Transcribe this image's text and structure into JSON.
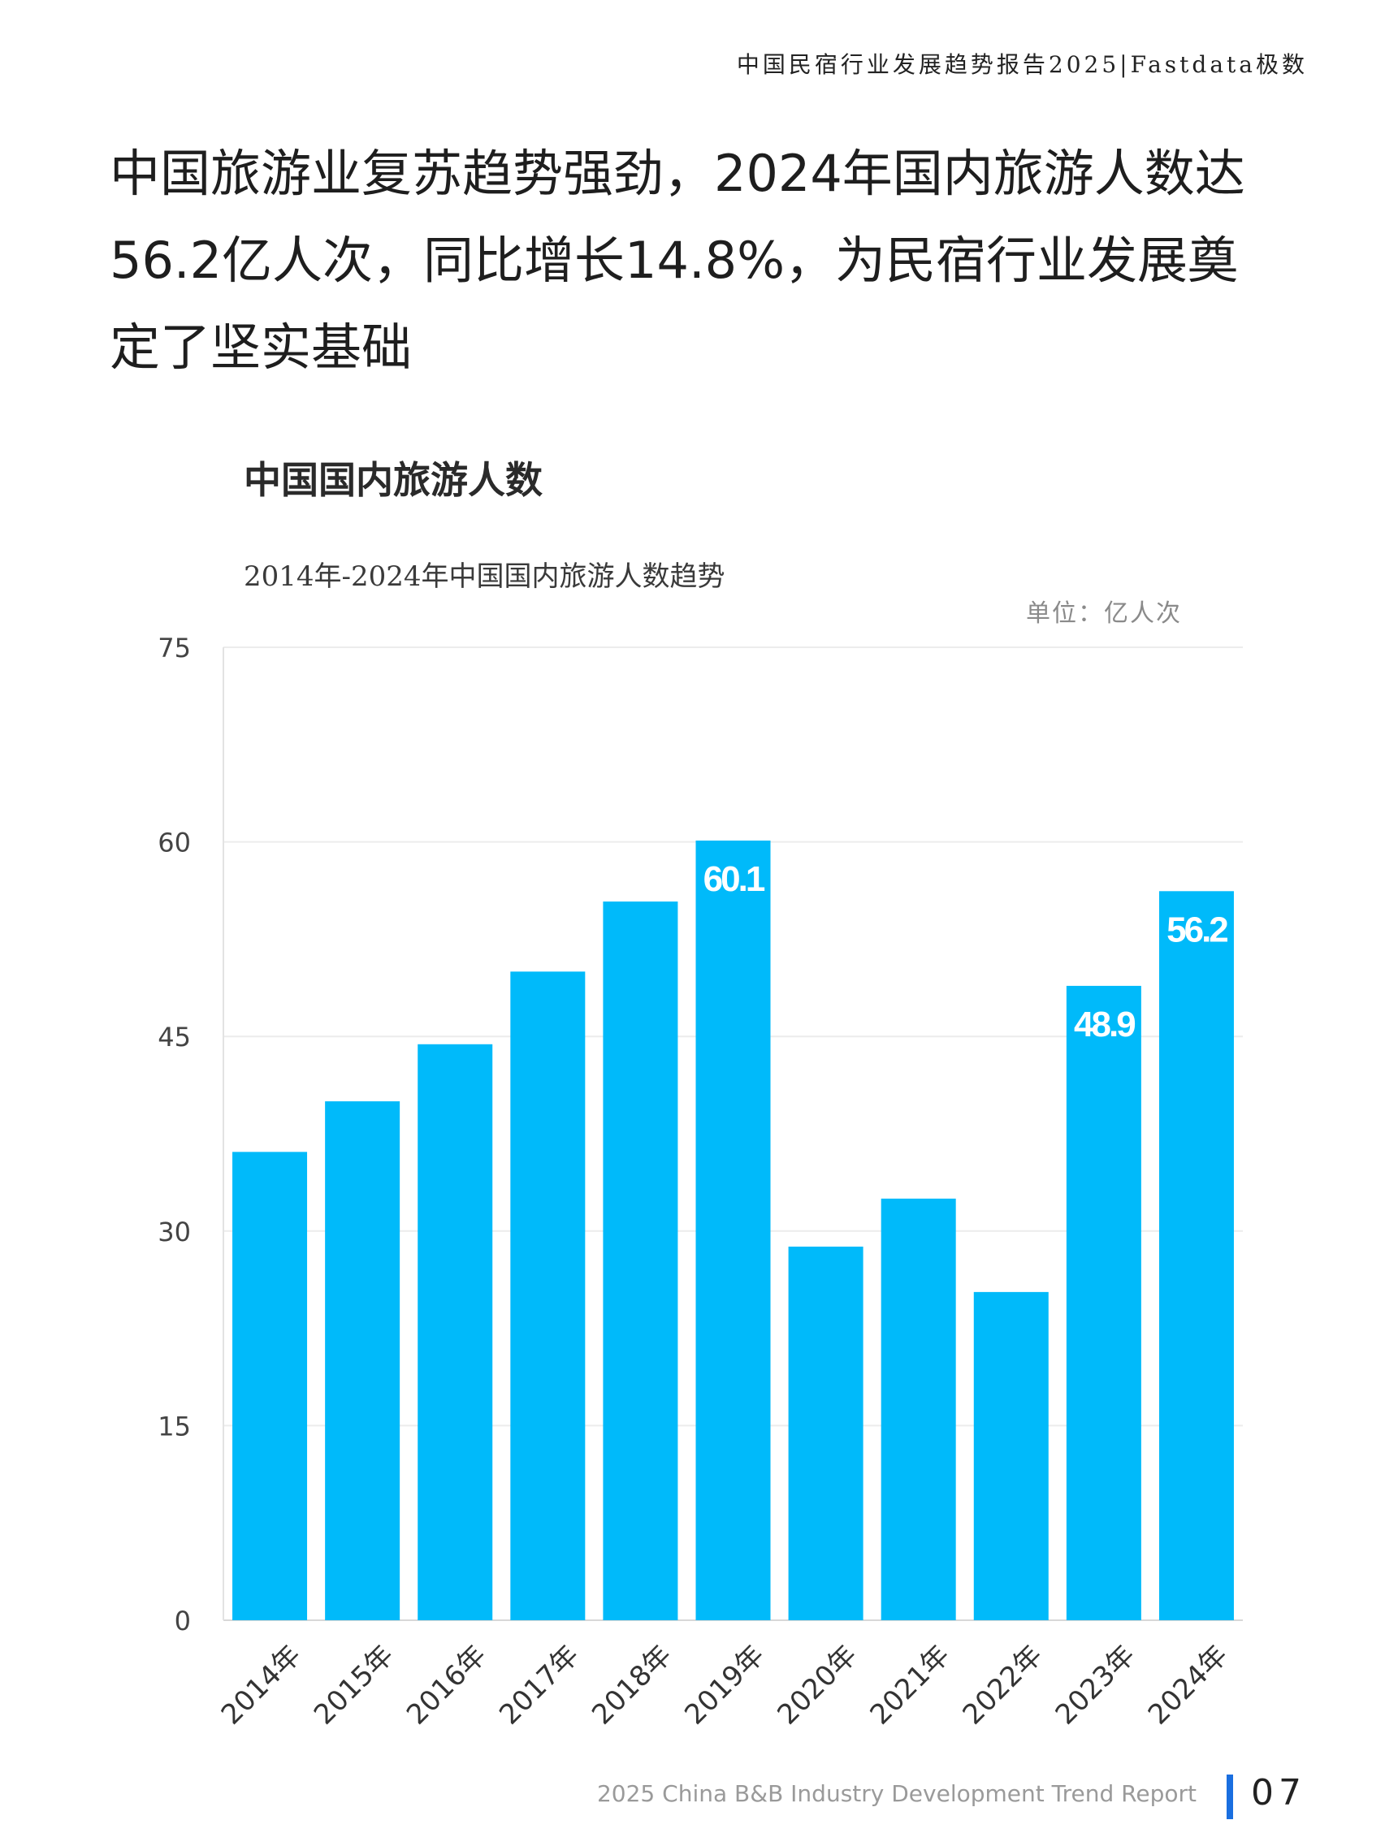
{
  "header": {
    "report_line": "中国民宿行业发展趋势报告2025|Fastdata极数"
  },
  "headline": "中国旅游业复苏趋势强劲，2024年国内旅游人数达56.2亿人次，同比增长14.8%，为民宿行业发展奠定了坚实基础",
  "footer": {
    "text": "2025 China B&B Industry Development Trend Report",
    "page": "07"
  },
  "colors": {
    "bar": "#00BAFA",
    "accent": "#1a6fe0"
  },
  "chart_data": {
    "type": "bar",
    "title": "中国国内旅游人数",
    "subtitle": "2014年-2024年中国国内旅游人数趋势",
    "unit": "单位：亿人次",
    "categories": [
      "2014年",
      "2015年",
      "2016年",
      "2017年",
      "2018年",
      "2019年",
      "2020年",
      "2021年",
      "2022年",
      "2023年",
      "2024年"
    ],
    "values": [
      36.1,
      40.0,
      44.4,
      50.0,
      55.4,
      60.1,
      28.8,
      32.5,
      25.3,
      48.9,
      56.2
    ],
    "data_labels": [
      "",
      "",
      "",
      "",
      "",
      "60.1",
      "",
      "",
      "",
      "48.9",
      "56.2"
    ],
    "yticks": [
      "0",
      "15",
      "30",
      "45",
      "60",
      "75"
    ],
    "ylim": [
      0,
      75
    ],
    "grid": true
  }
}
